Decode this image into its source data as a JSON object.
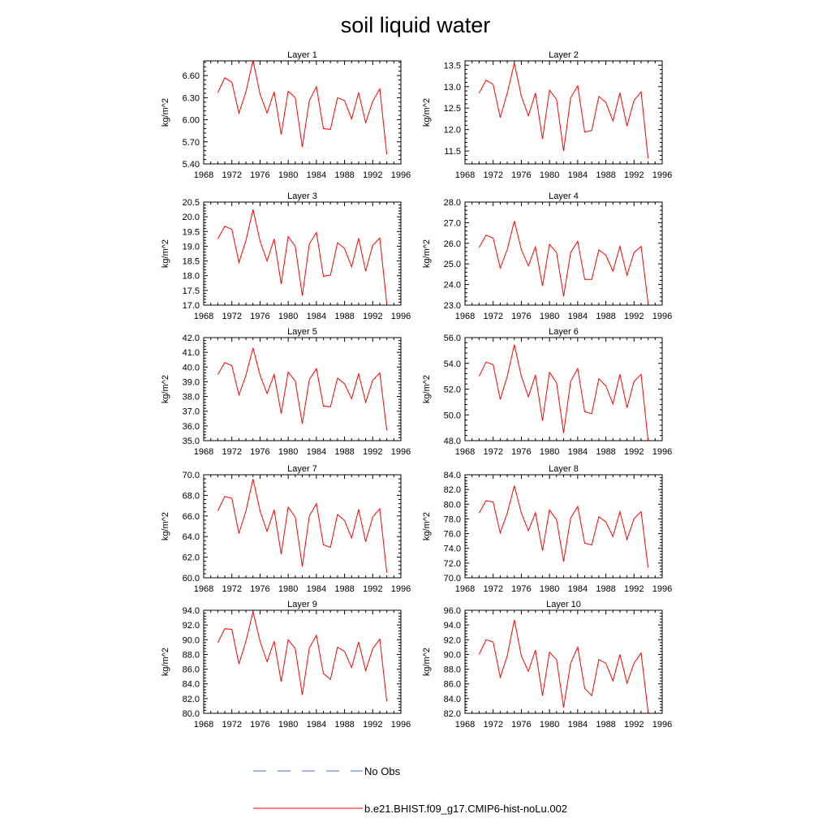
{
  "figure": {
    "title": "soil liquid water"
  },
  "legend": {
    "obs_label": "No Obs",
    "obs_color": "#4a6fd6",
    "model_label": "b.e21.BHIST.f09_g17.CMIP6-hist-noLu.002",
    "model_color": "#ff0000"
  },
  "chart_data": [
    {
      "type": "line",
      "title": "Layer 1",
      "ylabel": "kg/m^2",
      "x": [
        1970,
        1971,
        1972,
        1973,
        1974,
        1975,
        1976,
        1977,
        1978,
        1979,
        1980,
        1981,
        1982,
        1983,
        1984,
        1985,
        1986,
        1987,
        1988,
        1989,
        1990,
        1991,
        1992,
        1993,
        1994
      ],
      "series": [
        {
          "name": "b.e21.BHIST.f09_g17.CMIP6-hist-noLu.002",
          "values": [
            6.37,
            6.57,
            6.51,
            6.09,
            6.38,
            6.81,
            6.35,
            6.09,
            6.38,
            5.8,
            6.39,
            6.3,
            5.63,
            6.26,
            6.45,
            5.88,
            5.87,
            6.3,
            6.26,
            6.01,
            6.37,
            5.96,
            6.25,
            6.42,
            5.53
          ]
        }
      ],
      "xlim": [
        1968,
        1996
      ],
      "ylim": [
        5.4,
        6.8
      ],
      "xticks": [
        "1968",
        "1972",
        "1976",
        "1980",
        "1984",
        "1988",
        "1992",
        "1996"
      ],
      "yticks": [
        "5.40",
        "5.70",
        "6.00",
        "6.30",
        "6.60"
      ]
    },
    {
      "type": "line",
      "title": "Layer 2",
      "ylabel": "kg/m^2",
      "x": [
        1970,
        1971,
        1972,
        1973,
        1974,
        1975,
        1976,
        1977,
        1978,
        1979,
        1980,
        1981,
        1982,
        1983,
        1984,
        1985,
        1986,
        1987,
        1988,
        1989,
        1990,
        1991,
        1992,
        1993,
        1994
      ],
      "series": [
        {
          "name": "b.e21.BHIST.f09_g17.CMIP6-hist-noLu.002",
          "values": [
            12.85,
            13.15,
            13.05,
            12.28,
            12.85,
            13.55,
            12.78,
            12.32,
            12.85,
            11.78,
            12.92,
            12.7,
            11.5,
            12.74,
            13.02,
            11.94,
            11.98,
            12.77,
            12.63,
            12.2,
            12.86,
            12.08,
            12.68,
            12.88,
            11.33
          ]
        }
      ],
      "xlim": [
        1968,
        1996
      ],
      "ylim": [
        11.2,
        13.6
      ],
      "xticks": [
        "1968",
        "1972",
        "1976",
        "1980",
        "1984",
        "1988",
        "1992",
        "1996"
      ],
      "yticks": [
        "11.5",
        "12.0",
        "12.5",
        "13.0",
        "13.5"
      ]
    },
    {
      "type": "line",
      "title": "Layer 3",
      "ylabel": "kg/m^2",
      "x": [
        1970,
        1971,
        1972,
        1973,
        1974,
        1975,
        1976,
        1977,
        1978,
        1979,
        1980,
        1981,
        1982,
        1983,
        1984,
        1985,
        1986,
        1987,
        1988,
        1989,
        1990,
        1991,
        1992,
        1993,
        1994
      ],
      "series": [
        {
          "name": "b.e21.BHIST.f09_g17.CMIP6-hist-noLu.002",
          "values": [
            19.25,
            19.68,
            19.57,
            18.45,
            19.2,
            20.25,
            19.18,
            18.5,
            19.25,
            17.72,
            19.33,
            19.0,
            17.32,
            19.08,
            19.47,
            17.98,
            18.02,
            19.12,
            18.92,
            18.3,
            19.27,
            18.15,
            19.03,
            19.28,
            17.05
          ]
        }
      ],
      "xlim": [
        1968,
        1996
      ],
      "ylim": [
        17.0,
        20.5
      ],
      "xticks": [
        "1968",
        "1972",
        "1976",
        "1980",
        "1984",
        "1988",
        "1992",
        "1996"
      ],
      "yticks": [
        "17.0",
        "17.5",
        "18.0",
        "18.5",
        "19.0",
        "19.5",
        "20.0",
        "20.5"
      ]
    },
    {
      "type": "line",
      "title": "Layer 4",
      "ylabel": "kg/m^2",
      "x": [
        1970,
        1971,
        1972,
        1973,
        1974,
        1975,
        1976,
        1977,
        1978,
        1979,
        1980,
        1981,
        1982,
        1983,
        1984,
        1985,
        1986,
        1987,
        1988,
        1989,
        1990,
        1991,
        1992,
        1993,
        1994
      ],
      "series": [
        {
          "name": "b.e21.BHIST.f09_g17.CMIP6-hist-noLu.002",
          "values": [
            25.8,
            26.4,
            26.25,
            24.8,
            25.7,
            27.08,
            25.7,
            24.9,
            25.83,
            23.93,
            25.95,
            25.55,
            23.43,
            25.55,
            26.1,
            24.25,
            24.25,
            25.68,
            25.42,
            24.65,
            25.85,
            24.45,
            25.55,
            25.85,
            23.1
          ]
        }
      ],
      "xlim": [
        1968,
        1996
      ],
      "ylim": [
        23.0,
        28.0
      ],
      "xticks": [
        "1968",
        "1972",
        "1976",
        "1980",
        "1984",
        "1988",
        "1992",
        "1996"
      ],
      "yticks": [
        "23.0",
        "24.0",
        "25.0",
        "26.0",
        "27.0",
        "28.0"
      ]
    },
    {
      "type": "line",
      "title": "Layer 5",
      "ylabel": "kg/m^2",
      "x": [
        1970,
        1971,
        1972,
        1973,
        1974,
        1975,
        1976,
        1977,
        1978,
        1979,
        1980,
        1981,
        1982,
        1983,
        1984,
        1985,
        1986,
        1987,
        1988,
        1989,
        1990,
        1991,
        1992,
        1993,
        1994
      ],
      "series": [
        {
          "name": "b.e21.BHIST.f09_g17.CMIP6-hist-noLu.002",
          "values": [
            39.5,
            40.3,
            40.1,
            38.1,
            39.45,
            41.3,
            39.45,
            38.2,
            39.5,
            36.85,
            39.65,
            39.05,
            36.15,
            39.15,
            39.9,
            37.35,
            37.3,
            39.25,
            38.85,
            37.85,
            39.55,
            37.6,
            39.1,
            39.6,
            35.7
          ]
        }
      ],
      "xlim": [
        1968,
        1996
      ],
      "ylim": [
        35.0,
        42.0
      ],
      "xticks": [
        "1968",
        "1972",
        "1976",
        "1980",
        "1984",
        "1988",
        "1992",
        "1996"
      ],
      "yticks": [
        "35.0",
        "36.0",
        "37.0",
        "38.0",
        "39.0",
        "40.0",
        "41.0",
        "42.0"
      ]
    },
    {
      "type": "line",
      "title": "Layer 6",
      "ylabel": "kg/m^2",
      "x": [
        1970,
        1971,
        1972,
        1973,
        1974,
        1975,
        1976,
        1977,
        1978,
        1979,
        1980,
        1981,
        1982,
        1983,
        1984,
        1985,
        1986,
        1987,
        1988,
        1989,
        1990,
        1991,
        1992,
        1993,
        1994
      ],
      "series": [
        {
          "name": "b.e21.BHIST.f09_g17.CMIP6-hist-noLu.002",
          "values": [
            53.0,
            54.1,
            53.9,
            51.2,
            53.0,
            55.45,
            53.0,
            51.4,
            53.1,
            49.55,
            53.3,
            52.5,
            48.6,
            52.6,
            53.6,
            50.25,
            50.1,
            52.8,
            52.25,
            50.85,
            53.15,
            50.55,
            52.6,
            53.15,
            48.0
          ]
        }
      ],
      "xlim": [
        1968,
        1996
      ],
      "ylim": [
        48.0,
        56.0
      ],
      "xticks": [
        "1968",
        "1972",
        "1976",
        "1980",
        "1984",
        "1988",
        "1992",
        "1996"
      ],
      "yticks": [
        "48.0",
        "50.0",
        "52.0",
        "54.0",
        "56.0"
      ]
    },
    {
      "type": "line",
      "title": "Layer 7",
      "ylabel": "kg/m^2",
      "x": [
        1970,
        1971,
        1972,
        1973,
        1974,
        1975,
        1976,
        1977,
        1978,
        1979,
        1980,
        1981,
        1982,
        1983,
        1984,
        1985,
        1986,
        1987,
        1988,
        1989,
        1990,
        1991,
        1992,
        1993,
        1994
      ],
      "series": [
        {
          "name": "b.e21.BHIST.f09_g17.CMIP6-hist-noLu.002",
          "values": [
            66.5,
            67.9,
            67.7,
            64.3,
            66.5,
            69.6,
            66.5,
            64.5,
            66.6,
            62.3,
            66.85,
            65.9,
            61.1,
            66.0,
            67.2,
            63.2,
            62.95,
            66.15,
            65.55,
            63.85,
            66.65,
            63.5,
            65.9,
            66.7,
            60.5
          ]
        }
      ],
      "xlim": [
        1968,
        1996
      ],
      "ylim": [
        60.0,
        70.0
      ],
      "xticks": [
        "1968",
        "1972",
        "1976",
        "1980",
        "1984",
        "1988",
        "1992",
        "1996"
      ],
      "yticks": [
        "60.0",
        "62.0",
        "64.0",
        "66.0",
        "68.0",
        "70.0"
      ]
    },
    {
      "type": "line",
      "title": "Layer 8",
      "ylabel": "kg/m^2",
      "x": [
        1970,
        1971,
        1972,
        1973,
        1974,
        1975,
        1976,
        1977,
        1978,
        1979,
        1980,
        1981,
        1982,
        1983,
        1984,
        1985,
        1986,
        1987,
        1988,
        1989,
        1990,
        1991,
        1992,
        1993,
        1994
      ],
      "series": [
        {
          "name": "b.e21.BHIST.f09_g17.CMIP6-hist-noLu.002",
          "values": [
            78.8,
            80.5,
            80.3,
            76.1,
            78.8,
            82.5,
            78.8,
            76.4,
            78.85,
            73.7,
            79.2,
            77.9,
            72.2,
            78.1,
            79.7,
            74.7,
            74.45,
            78.3,
            77.6,
            75.6,
            79.0,
            75.2,
            78.05,
            79.0,
            71.4
          ]
        }
      ],
      "xlim": [
        1968,
        1996
      ],
      "ylim": [
        70.0,
        84.0
      ],
      "xticks": [
        "1968",
        "1972",
        "1976",
        "1980",
        "1984",
        "1988",
        "1992",
        "1996"
      ],
      "yticks": [
        "70.0",
        "72.0",
        "74.0",
        "76.0",
        "78.0",
        "80.0",
        "82.0",
        "84.0"
      ]
    },
    {
      "type": "line",
      "title": "Layer 9",
      "ylabel": "kg/m^2",
      "x": [
        1970,
        1971,
        1972,
        1973,
        1974,
        1975,
        1976,
        1977,
        1978,
        1979,
        1980,
        1981,
        1982,
        1983,
        1984,
        1985,
        1986,
        1987,
        1988,
        1989,
        1990,
        1991,
        1992,
        1993,
        1994
      ],
      "series": [
        {
          "name": "b.e21.BHIST.f09_g17.CMIP6-hist-noLu.002",
          "values": [
            89.6,
            91.5,
            91.4,
            86.7,
            89.8,
            93.8,
            89.8,
            87.0,
            89.8,
            84.3,
            90.0,
            88.8,
            82.5,
            88.9,
            90.6,
            85.4,
            84.6,
            89.0,
            88.4,
            86.2,
            89.7,
            85.8,
            88.8,
            90.1,
            81.6
          ]
        }
      ],
      "xlim": [
        1968,
        1996
      ],
      "ylim": [
        80.0,
        94.0
      ],
      "xticks": [
        "1968",
        "1972",
        "1976",
        "1980",
        "1984",
        "1988",
        "1992",
        "1996"
      ],
      "yticks": [
        "80.0",
        "82.0",
        "84.0",
        "86.0",
        "88.0",
        "90.0",
        "92.0",
        "94.0"
      ]
    },
    {
      "type": "line",
      "title": "Layer 10",
      "ylabel": "kg/m^2",
      "x": [
        1970,
        1971,
        1972,
        1973,
        1974,
        1975,
        1976,
        1977,
        1978,
        1979,
        1980,
        1981,
        1982,
        1983,
        1984,
        1985,
        1986,
        1987,
        1988,
        1989,
        1990,
        1991,
        1992,
        1993,
        1994
      ],
      "series": [
        {
          "name": "b.e21.BHIST.f09_g17.CMIP6-hist-noLu.002",
          "values": [
            90.0,
            92.0,
            91.7,
            86.9,
            89.8,
            94.7,
            89.8,
            87.7,
            90.6,
            84.4,
            90.3,
            89.3,
            82.8,
            88.8,
            91.0,
            85.4,
            84.4,
            89.3,
            88.8,
            86.4,
            90.0,
            86.1,
            88.8,
            90.2,
            82.2
          ]
        }
      ],
      "xlim": [
        1968,
        1996
      ],
      "ylim": [
        82.0,
        96.0
      ],
      "xticks": [
        "1968",
        "1972",
        "1976",
        "1980",
        "1984",
        "1988",
        "1992",
        "1996"
      ],
      "yticks": [
        "82.0",
        "84.0",
        "86.0",
        "88.0",
        "90.0",
        "92.0",
        "94.0",
        "96.0"
      ]
    }
  ]
}
